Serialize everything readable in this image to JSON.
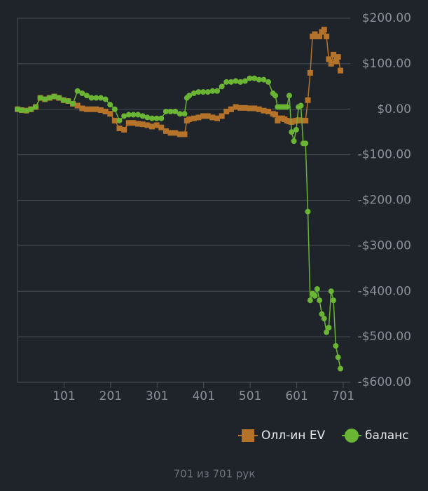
{
  "chart_data": {
    "type": "line",
    "x": [
      1,
      10,
      20,
      30,
      40,
      50,
      60,
      70,
      80,
      90,
      100,
      110,
      120,
      130,
      140,
      150,
      160,
      170,
      180,
      190,
      200,
      210,
      220,
      230,
      240,
      250,
      260,
      270,
      280,
      290,
      300,
      310,
      320,
      330,
      340,
      350,
      360,
      365,
      370,
      380,
      390,
      400,
      410,
      420,
      430,
      440,
      450,
      460,
      470,
      480,
      490,
      500,
      510,
      520,
      530,
      540,
      550,
      555,
      560,
      565,
      570,
      575,
      580,
      585,
      590,
      595,
      600,
      605,
      610,
      615,
      620,
      625,
      630,
      635,
      640,
      645,
      650,
      655,
      660,
      665,
      670,
      675,
      680,
      685,
      690,
      695
    ],
    "series": [
      {
        "name": "Олл-ин EV",
        "color": "#b5732a",
        "marker": "square",
        "values": [
          0,
          -2,
          -3,
          0,
          5,
          25,
          22,
          25,
          28,
          25,
          20,
          18,
          12,
          8,
          2,
          0,
          0,
          0,
          -2,
          -5,
          -10,
          -25,
          -42,
          -45,
          -30,
          -30,
          -32,
          -33,
          -35,
          -38,
          -35,
          -40,
          -48,
          -52,
          -52,
          -55,
          -55,
          -25,
          -22,
          -20,
          -18,
          -15,
          -15,
          -18,
          -20,
          -15,
          -5,
          0,
          5,
          3,
          3,
          2,
          2,
          0,
          -3,
          -5,
          -10,
          -12,
          -25,
          -20,
          -20,
          -22,
          -25,
          -27,
          -28,
          -26,
          -25,
          -24,
          -25,
          -25,
          -25,
          20,
          80,
          160,
          165,
          160,
          160,
          170,
          175,
          160,
          110,
          100,
          120,
          105,
          115,
          85
        ]
      },
      {
        "name": "баланс",
        "color": "#6ab534",
        "marker": "circle",
        "values": [
          0,
          -2,
          -3,
          0,
          5,
          25,
          22,
          25,
          28,
          25,
          20,
          18,
          12,
          40,
          35,
          30,
          25,
          25,
          25,
          22,
          10,
          0,
          -25,
          -15,
          -12,
          -12,
          -12,
          -15,
          -18,
          -20,
          -20,
          -20,
          -5,
          -5,
          -5,
          -10,
          -10,
          25,
          30,
          35,
          38,
          38,
          38,
          40,
          40,
          50,
          60,
          60,
          62,
          60,
          62,
          68,
          68,
          65,
          65,
          60,
          35,
          30,
          5,
          5,
          5,
          5,
          5,
          30,
          -50,
          -70,
          -45,
          5,
          8,
          -75,
          -75,
          -225,
          -420,
          -405,
          -410,
          -395,
          -420,
          -450,
          -460,
          -490,
          -480,
          -400,
          -420,
          -520,
          -545,
          -570
        ]
      }
    ],
    "xlim": [
      1,
      701
    ],
    "xticks": [
      101,
      201,
      301,
      401,
      501,
      601,
      701
    ],
    "ylim": [
      -600,
      200
    ],
    "yticks": [
      {
        "value": 200,
        "label": "$200.00"
      },
      {
        "value": 100,
        "label": "$100.00"
      },
      {
        "value": 0,
        "label": "$0.00"
      },
      {
        "value": -100,
        "label": "-$100.00"
      },
      {
        "value": -200,
        "label": "-$200.00"
      },
      {
        "value": -300,
        "label": "-$300.00"
      },
      {
        "value": -400,
        "label": "-$400.00"
      },
      {
        "value": -500,
        "label": "-$500.00"
      },
      {
        "value": -600,
        "label": "-$600.00"
      }
    ],
    "grid": true,
    "legend": "bottom-right",
    "footer": "701 из 701 рук"
  }
}
